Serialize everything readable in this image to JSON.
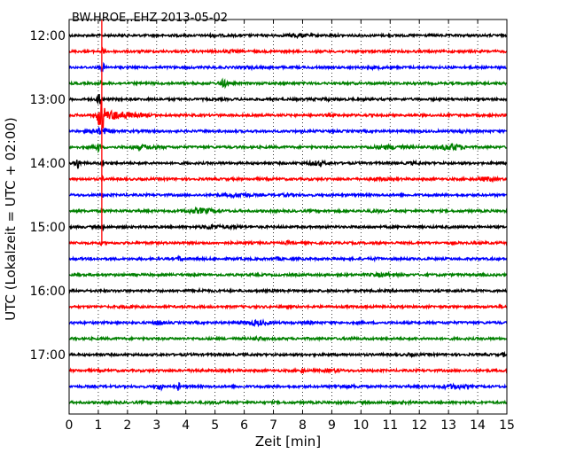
{
  "chart_data": {
    "type": "line",
    "title": "BW.HROE..EHZ 2013-05-02",
    "xlabel": "Zeit  [min]",
    "ylabel": "UTC (Lokalzeit = UTC + 02:00)",
    "xlim": [
      0,
      15
    ],
    "x_ticks": [
      "0",
      "1",
      "2",
      "3",
      "4",
      "5",
      "6",
      "7",
      "8",
      "9",
      "10",
      "11",
      "12",
      "13",
      "14",
      "15"
    ],
    "y_tick_labels": [
      "12:00",
      "13:00",
      "14:00",
      "15:00",
      "16:00",
      "17:00"
    ],
    "grid": true,
    "colors": [
      "#000000",
      "#ff0000",
      "#0000ff",
      "#008000"
    ],
    "traces": [
      {
        "label": "12:00",
        "color": "#000000",
        "events": [
          [
            5.0,
            0.25,
            0.7
          ],
          [
            7.8,
            0.3,
            1.6
          ]
        ]
      },
      {
        "label": "12:15",
        "color": "#ff0000",
        "events": [
          [
            1.15,
            0.05,
            4
          ],
          [
            5.5,
            0.2,
            0.8
          ]
        ]
      },
      {
        "label": "12:30",
        "color": "#0000ff",
        "events": [
          [
            1.15,
            0.06,
            4.5
          ],
          [
            6.2,
            0.3,
            0.6
          ],
          [
            10.5,
            0.3,
            0.6
          ]
        ]
      },
      {
        "label": "12:45",
        "color": "#008000",
        "events": [
          [
            1.1,
            0.05,
            3
          ],
          [
            5.3,
            0.15,
            3.5
          ]
        ]
      },
      {
        "label": "13:00",
        "color": "#000000",
        "events": [
          [
            1.05,
            0.07,
            10
          ],
          [
            8.7,
            0.3,
            0.6
          ]
        ]
      },
      {
        "label": "13:15",
        "color": "#ff0000",
        "events": [
          [
            1.1,
            0.12,
            16
          ],
          [
            1.55,
            0.45,
            4
          ],
          [
            2.3,
            0.5,
            1.2
          ]
        ]
      },
      {
        "label": "13:30",
        "color": "#0000ff",
        "events": [
          [
            1.1,
            0.3,
            3
          ],
          [
            13.5,
            0.3,
            0.6
          ]
        ]
      },
      {
        "label": "13:45",
        "color": "#008000",
        "events": [
          [
            1.0,
            0.1,
            4
          ],
          [
            2.6,
            0.5,
            1.6
          ],
          [
            11.0,
            0.6,
            1.5
          ],
          [
            13.1,
            0.4,
            3
          ]
        ]
      },
      {
        "label": "14:00",
        "color": "#000000",
        "events": [
          [
            0.3,
            0.08,
            6
          ],
          [
            1.15,
            0.05,
            3
          ],
          [
            8.5,
            0.3,
            1.8
          ],
          [
            11.8,
            0.2,
            0.8
          ]
        ]
      },
      {
        "label": "14:15",
        "color": "#ff0000",
        "events": [
          [
            1.15,
            0.05,
            2
          ],
          [
            10.6,
            0.3,
            0.8
          ],
          [
            14.3,
            0.3,
            1.6
          ]
        ]
      },
      {
        "label": "14:30",
        "color": "#0000ff",
        "events": [
          [
            1.15,
            0.05,
            2
          ],
          [
            5.8,
            0.4,
            1.6
          ],
          [
            7.5,
            0.3,
            0.7
          ]
        ]
      },
      {
        "label": "14:45",
        "color": "#008000",
        "events": [
          [
            1.15,
            0.05,
            2
          ],
          [
            4.5,
            0.5,
            2.2
          ],
          [
            10.5,
            0.3,
            0.8
          ]
        ]
      },
      {
        "label": "15:00",
        "color": "#000000",
        "events": [
          [
            1.15,
            0.05,
            2
          ],
          [
            4.9,
            0.3,
            1.8
          ],
          [
            5.6,
            0.2,
            1.2
          ]
        ]
      },
      {
        "label": "15:15",
        "color": "#ff0000",
        "events": [
          [
            1.1,
            0.04,
            1.5
          ],
          [
            7.5,
            0.05,
            1.8
          ]
        ]
      },
      {
        "label": "15:30",
        "color": "#0000ff",
        "events": [
          [
            3.8,
            0.08,
            2.2
          ],
          [
            7.2,
            0.1,
            1.2
          ],
          [
            10.5,
            0.2,
            0.6
          ]
        ]
      },
      {
        "label": "15:45",
        "color": "#008000",
        "events": [
          [
            10.8,
            0.4,
            1.4
          ]
        ]
      },
      {
        "label": "16:00",
        "color": "#000000",
        "events": [
          [
            4.5,
            0.3,
            0.6
          ]
        ]
      },
      {
        "label": "16:15",
        "color": "#ff0000",
        "events": [
          [
            2.0,
            0.2,
            0.7
          ],
          [
            14.8,
            0.05,
            1.2
          ]
        ]
      },
      {
        "label": "16:30",
        "color": "#0000ff",
        "events": [
          [
            3.1,
            0.15,
            2.2
          ],
          [
            6.4,
            0.45,
            2
          ],
          [
            8.2,
            0.2,
            0.8
          ]
        ]
      },
      {
        "label": "16:45",
        "color": "#008000",
        "events": [
          [
            6.5,
            0.15,
            1.2
          ],
          [
            9.7,
            0.05,
            1.6
          ]
        ]
      },
      {
        "label": "17:00",
        "color": "#000000",
        "events": [
          [
            11.7,
            0.15,
            0.8
          ],
          [
            14.9,
            0.05,
            2
          ]
        ]
      },
      {
        "label": "17:15",
        "color": "#ff0000",
        "events": [
          [
            4.3,
            0.1,
            1.2
          ],
          [
            8.0,
            0.05,
            3.5
          ],
          [
            9.0,
            0.3,
            0.9
          ]
        ]
      },
      {
        "label": "17:30",
        "color": "#0000ff",
        "events": [
          [
            3.1,
            0.1,
            3
          ],
          [
            3.75,
            0.05,
            4
          ],
          [
            9.5,
            0.4,
            0.9
          ],
          [
            13.2,
            0.4,
            1.8
          ]
        ]
      },
      {
        "label": "17:45",
        "color": "#008000",
        "events": [
          [
            5.0,
            0.3,
            0.6
          ],
          [
            11.5,
            0.3,
            0.6
          ]
        ]
      }
    ]
  }
}
